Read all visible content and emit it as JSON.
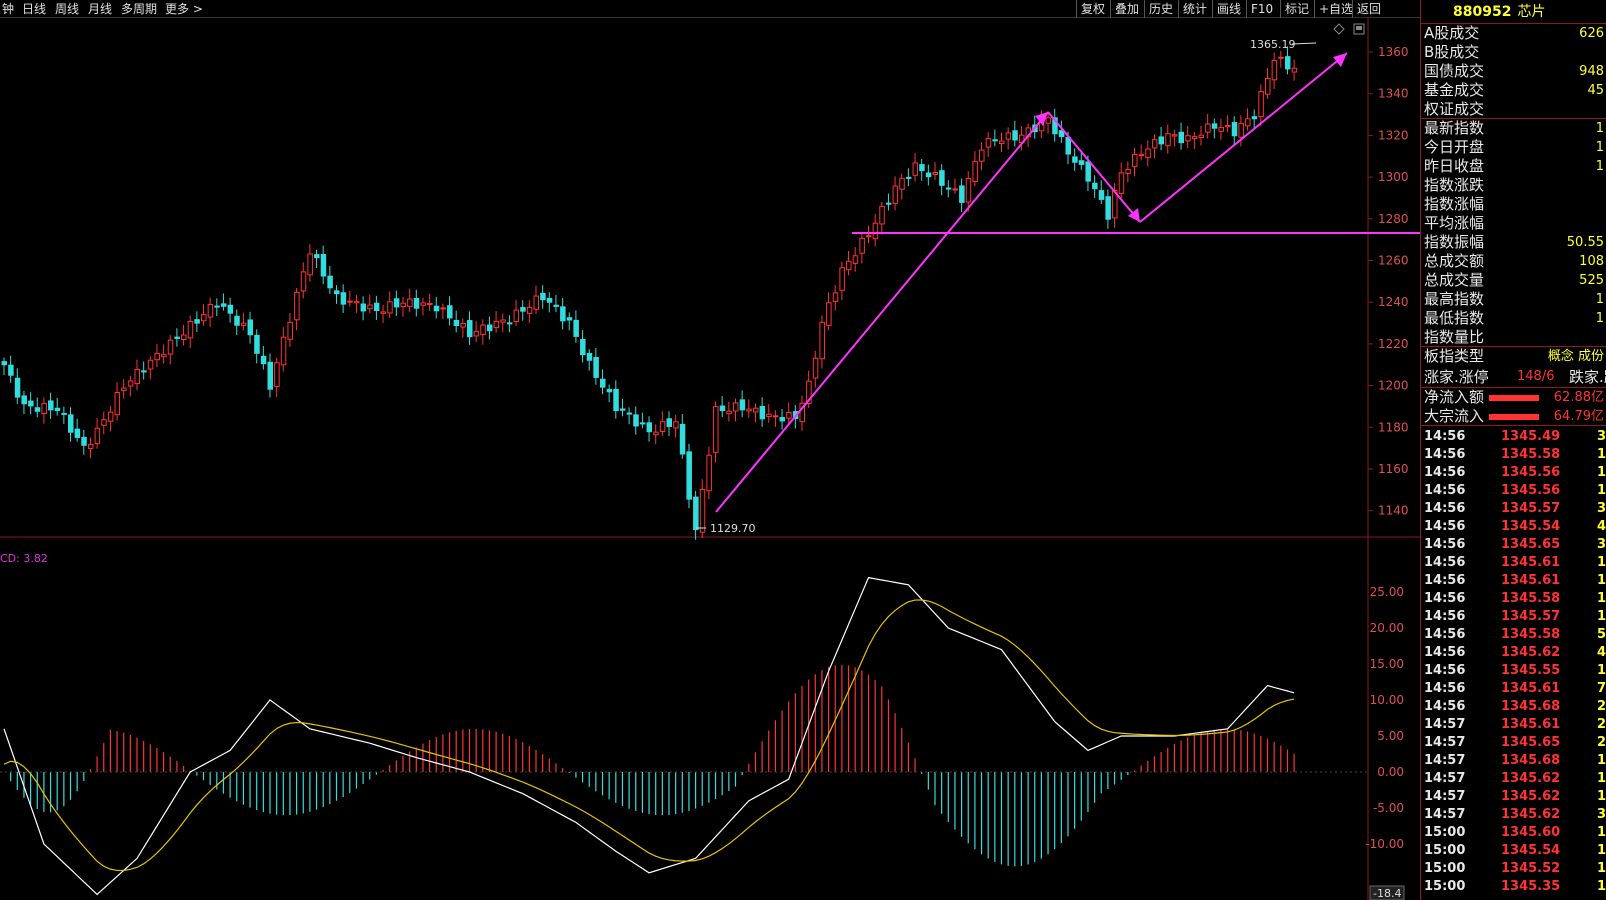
{
  "toolbar": {
    "left_items": [
      "钟",
      "日线",
      "周线",
      "月线",
      "多周期",
      "更多 >"
    ],
    "right_items": [
      "复权",
      "叠加",
      "历史",
      "统计",
      "画线",
      "F10",
      "标记",
      "+自选",
      "返回"
    ]
  },
  "chart": {
    "high_label": "1365.19",
    "low_label": "1129.70",
    "price_ticks": [
      "1360",
      "1340",
      "1320",
      "1300",
      "1280",
      "1260",
      "1240",
      "1220",
      "1200",
      "1180",
      "1160",
      "1140"
    ],
    "macd_title": "CD: 3.82",
    "macd_ticks": [
      "25.00",
      "20.00",
      "15.00",
      "10.00",
      "5.00",
      "0.00",
      "-5.00",
      "-10.00"
    ],
    "macd_bottom_value": "-18.4",
    "colors": {
      "up": "#ff3333",
      "down": "#33dddd",
      "annotation": "#ff33ff",
      "dif": "#ffffff",
      "dea": "#e6c200"
    }
  },
  "panel": {
    "code": "880952",
    "name": "芯片",
    "stats": [
      {
        "label": "A股成交",
        "value": "626"
      },
      {
        "label": "B股成交",
        "value": ""
      },
      {
        "label": "国债成交",
        "value": "948"
      },
      {
        "label": "基金成交",
        "value": "45"
      },
      {
        "label": "权证成交",
        "value": ""
      },
      {
        "label": "最新指数",
        "value": "1"
      },
      {
        "label": "今日开盘",
        "value": "1"
      },
      {
        "label": "昨日收盘",
        "value": "1"
      },
      {
        "label": "指数涨跌",
        "value": ""
      },
      {
        "label": "指数涨幅",
        "value": ""
      },
      {
        "label": "平均涨幅",
        "value": ""
      },
      {
        "label": "指数振幅",
        "value": "50.55"
      },
      {
        "label": "总成交额",
        "value": "108"
      },
      {
        "label": "总成交量",
        "value": "525"
      },
      {
        "label": "最高指数",
        "value": "1"
      },
      {
        "label": "最低指数",
        "value": "1"
      },
      {
        "label": "指数量比",
        "value": ""
      },
      {
        "label": "板指类型",
        "value": "概念 成份"
      }
    ],
    "breadth": {
      "label": "涨家.涨停",
      "value": "148/6",
      "label2": "跌家.跌停"
    },
    "flows": [
      {
        "label": "净流入额",
        "value": "62.88亿"
      },
      {
        "label": "大宗流入",
        "value": "64.79亿"
      }
    ],
    "ticks": [
      {
        "time": "14:56",
        "price": "1345.49",
        "vol": "3"
      },
      {
        "time": "14:56",
        "price": "1345.58",
        "vol": "1"
      },
      {
        "time": "14:56",
        "price": "1345.56",
        "vol": "1"
      },
      {
        "time": "14:56",
        "price": "1345.56",
        "vol": "1"
      },
      {
        "time": "14:56",
        "price": "1345.57",
        "vol": "3"
      },
      {
        "time": "14:56",
        "price": "1345.54",
        "vol": "4"
      },
      {
        "time": "14:56",
        "price": "1345.65",
        "vol": "3"
      },
      {
        "time": "14:56",
        "price": "1345.61",
        "vol": "1"
      },
      {
        "time": "14:56",
        "price": "1345.61",
        "vol": "1"
      },
      {
        "time": "14:56",
        "price": "1345.58",
        "vol": "1"
      },
      {
        "time": "14:56",
        "price": "1345.57",
        "vol": "1"
      },
      {
        "time": "14:56",
        "price": "1345.58",
        "vol": "5"
      },
      {
        "time": "14:56",
        "price": "1345.62",
        "vol": "4"
      },
      {
        "time": "14:56",
        "price": "1345.55",
        "vol": "1"
      },
      {
        "time": "14:56",
        "price": "1345.61",
        "vol": "7"
      },
      {
        "time": "14:56",
        "price": "1345.68",
        "vol": "2"
      },
      {
        "time": "14:57",
        "price": "1345.61",
        "vol": "2"
      },
      {
        "time": "14:57",
        "price": "1345.65",
        "vol": "2"
      },
      {
        "time": "14:57",
        "price": "1345.68",
        "vol": "1"
      },
      {
        "time": "14:57",
        "price": "1345.62",
        "vol": "1"
      },
      {
        "time": "14:57",
        "price": "1345.62",
        "vol": "1"
      },
      {
        "time": "14:57",
        "price": "1345.62",
        "vol": "3"
      },
      {
        "time": "15:00",
        "price": "1345.60",
        "vol": "1"
      },
      {
        "time": "15:00",
        "price": "1345.54",
        "vol": "1"
      },
      {
        "time": "15:00",
        "price": "1345.52",
        "vol": "1"
      },
      {
        "time": "15:00",
        "price": "1345.35",
        "vol": "1"
      }
    ]
  }
}
